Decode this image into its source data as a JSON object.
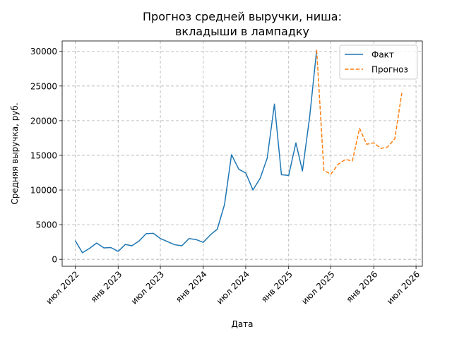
{
  "chart_data": {
    "type": "line",
    "title_lines": [
      "Прогноз средней выручки, ниша:",
      "вкладыши в лампадку"
    ],
    "xlabel": "Дата",
    "ylabel": "Средняя выручка, руб.",
    "xlim": [
      "2022-05-06",
      "2026-07-28"
    ],
    "ylim": [
      -1000,
      31500
    ],
    "x_ticks": [
      {
        "date": "2022-07-01",
        "label": "июл 2022"
      },
      {
        "date": "2023-01-01",
        "label": "янв 2023"
      },
      {
        "date": "2023-07-01",
        "label": "июл 2023"
      },
      {
        "date": "2024-01-01",
        "label": "янв 2024"
      },
      {
        "date": "2024-07-01",
        "label": "июл 2024"
      },
      {
        "date": "2025-01-01",
        "label": "янв 2025"
      },
      {
        "date": "2025-07-01",
        "label": "июл 2025"
      },
      {
        "date": "2026-01-01",
        "label": "янв 2026"
      },
      {
        "date": "2026-07-01",
        "label": "июл 2026"
      }
    ],
    "y_ticks": [
      0,
      5000,
      10000,
      15000,
      20000,
      25000,
      30000
    ],
    "grid": true,
    "legend_position": "top-right",
    "series": [
      {
        "name": "Факт",
        "color": "#1f77b4",
        "style": "solid",
        "points": [
          [
            "2022-07-01",
            2700
          ],
          [
            "2022-08-01",
            950
          ],
          [
            "2022-09-01",
            1600
          ],
          [
            "2022-10-01",
            2350
          ],
          [
            "2022-11-01",
            1650
          ],
          [
            "2022-12-01",
            1700
          ],
          [
            "2023-01-01",
            1150
          ],
          [
            "2023-02-01",
            2150
          ],
          [
            "2023-03-01",
            1950
          ],
          [
            "2023-04-01",
            2650
          ],
          [
            "2023-05-01",
            3700
          ],
          [
            "2023-06-01",
            3750
          ],
          [
            "2023-07-01",
            3000
          ],
          [
            "2023-08-01",
            2550
          ],
          [
            "2023-09-01",
            2100
          ],
          [
            "2023-10-01",
            1950
          ],
          [
            "2023-11-01",
            3000
          ],
          [
            "2023-12-01",
            2850
          ],
          [
            "2024-01-01",
            2450
          ],
          [
            "2024-02-01",
            3550
          ],
          [
            "2024-03-01",
            4350
          ],
          [
            "2024-04-01",
            7900
          ],
          [
            "2024-05-01",
            15100
          ],
          [
            "2024-06-01",
            13000
          ],
          [
            "2024-07-01",
            12450
          ],
          [
            "2024-08-01",
            10000
          ],
          [
            "2024-09-01",
            11700
          ],
          [
            "2024-10-01",
            14600
          ],
          [
            "2024-11-01",
            22400
          ],
          [
            "2024-12-01",
            12200
          ],
          [
            "2025-01-01",
            12100
          ],
          [
            "2025-02-01",
            16800
          ],
          [
            "2025-03-01",
            12750
          ],
          [
            "2025-04-01",
            20550
          ],
          [
            "2025-05-01",
            30200
          ]
        ]
      },
      {
        "name": "Прогноз",
        "color": "#ff7f0e",
        "style": "dashed",
        "points": [
          [
            "2025-05-01",
            30200
          ],
          [
            "2025-06-01",
            12800
          ],
          [
            "2025-07-01",
            12300
          ],
          [
            "2025-08-01",
            13700
          ],
          [
            "2025-09-01",
            14400
          ],
          [
            "2025-10-01",
            14200
          ],
          [
            "2025-11-01",
            18900
          ],
          [
            "2025-12-01",
            16600
          ],
          [
            "2026-01-01",
            16800
          ],
          [
            "2026-02-01",
            16000
          ],
          [
            "2026-03-01",
            16200
          ],
          [
            "2026-04-01",
            17400
          ],
          [
            "2026-05-01",
            24000
          ]
        ]
      }
    ]
  }
}
